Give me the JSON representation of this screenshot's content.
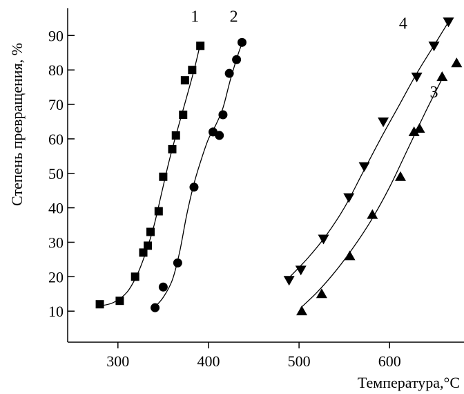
{
  "chart_data": {
    "type": "scatter",
    "title": "",
    "xlabel": "Температура,°С",
    "ylabel": "Степень превращения, %",
    "xlim": [
      240,
      680
    ],
    "ylim": [
      0,
      100
    ],
    "x_ticks": [
      300,
      400,
      500,
      600
    ],
    "y_ticks": [
      10,
      20,
      30,
      40,
      50,
      60,
      70,
      80,
      90
    ],
    "grid": false,
    "legend": "none",
    "series": [
      {
        "name": "1",
        "marker": "square",
        "points": [
          [
            280,
            12
          ],
          [
            302,
            13
          ],
          [
            319,
            20
          ],
          [
            328,
            27
          ],
          [
            333,
            29
          ],
          [
            336,
            33
          ],
          [
            345,
            39
          ],
          [
            350,
            49
          ],
          [
            360,
            57
          ],
          [
            364,
            61
          ],
          [
            372,
            67
          ],
          [
            374,
            77
          ],
          [
            382,
            80
          ],
          [
            391,
            87
          ]
        ],
        "curve": [
          [
            280,
            11.5
          ],
          [
            295,
            12.5
          ],
          [
            310,
            15.5
          ],
          [
            322,
            21
          ],
          [
            332,
            28
          ],
          [
            340,
            35
          ],
          [
            348,
            44
          ],
          [
            356,
            53
          ],
          [
            364,
            61
          ],
          [
            372,
            68.5
          ],
          [
            380,
            76
          ],
          [
            386,
            82
          ],
          [
            390,
            86.5
          ]
        ]
      },
      {
        "name": "2",
        "marker": "circle",
        "points": [
          [
            341,
            11
          ],
          [
            350,
            17
          ],
          [
            366,
            24
          ],
          [
            384,
            46
          ],
          [
            405,
            62
          ],
          [
            412,
            61
          ],
          [
            416,
            67
          ],
          [
            423,
            79
          ],
          [
            431,
            83
          ],
          [
            437,
            88
          ]
        ],
        "curve": [
          [
            340,
            11
          ],
          [
            350,
            14
          ],
          [
            360,
            19
          ],
          [
            368,
            27
          ],
          [
            376,
            38
          ],
          [
            384,
            47
          ],
          [
            392,
            54
          ],
          [
            400,
            60
          ],
          [
            408,
            64
          ],
          [
            416,
            69
          ],
          [
            424,
            77
          ],
          [
            432,
            84
          ],
          [
            436,
            87
          ]
        ]
      },
      {
        "name": "3",
        "marker": "triangle-up",
        "points": [
          [
            503,
            10
          ],
          [
            525,
            15
          ],
          [
            556,
            26
          ],
          [
            581,
            38
          ],
          [
            612,
            49
          ],
          [
            627,
            62
          ],
          [
            633,
            63
          ],
          [
            658,
            78
          ],
          [
            674,
            82
          ]
        ],
        "curve": [
          [
            502,
            11
          ],
          [
            520,
            15.5
          ],
          [
            540,
            21.5
          ],
          [
            560,
            28.5
          ],
          [
            580,
            36.5
          ],
          [
            600,
            46
          ],
          [
            620,
            57
          ],
          [
            640,
            68
          ],
          [
            660,
            78.5
          ]
        ]
      },
      {
        "name": "4",
        "marker": "triangle-down",
        "points": [
          [
            489,
            19
          ],
          [
            502,
            22
          ],
          [
            527,
            31
          ],
          [
            555,
            43
          ],
          [
            572,
            52
          ],
          [
            593,
            65
          ],
          [
            630,
            78
          ],
          [
            649,
            87
          ],
          [
            665,
            94
          ]
        ],
        "curve": [
          [
            490,
            20
          ],
          [
            510,
            25.5
          ],
          [
            530,
            32
          ],
          [
            550,
            40
          ],
          [
            570,
            50
          ],
          [
            590,
            60
          ],
          [
            610,
            69.5
          ],
          [
            630,
            79
          ],
          [
            650,
            87.5
          ],
          [
            664,
            93.5
          ]
        ]
      }
    ],
    "series_labels": [
      {
        "text": "1",
        "x": 385,
        "y": 94
      },
      {
        "text": "2",
        "x": 428,
        "y": 94
      },
      {
        "text": "3",
        "x": 649,
        "y": 72
      },
      {
        "text": "4",
        "x": 615,
        "y": 92
      }
    ]
  }
}
